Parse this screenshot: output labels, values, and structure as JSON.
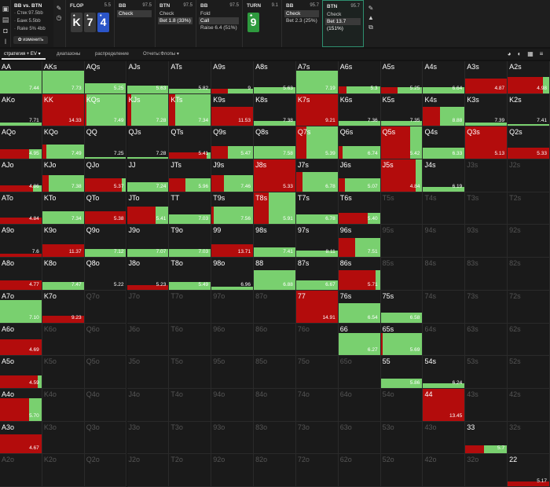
{
  "header": {
    "title": "BB vs. BTN",
    "stack": "· Стек 97.5bb",
    "pot": "· Банк 5.5bb",
    "rake": "· Rake 5% 4bb",
    "change_label": "✿ изменить"
  },
  "streets": [
    {
      "name": "FLOP",
      "stack": "5.5",
      "actions": [],
      "cards": [
        {
          "rank": "K",
          "suit": "♠",
          "color": "#3a3a3a"
        },
        {
          "rank": "7",
          "suit": "♠",
          "color": "#3a3a3a"
        },
        {
          "rank": "4",
          "suit": "♦",
          "color": "#2b55c8"
        }
      ]
    },
    {
      "name": "BB",
      "stack": "97.5",
      "actions": [
        {
          "label": "Check",
          "selected": true
        }
      ]
    },
    {
      "name": "BTN",
      "stack": "97.5",
      "actions": [
        {
          "label": "Check",
          "selected": false
        },
        {
          "label": "Bet 1.8 (33%)",
          "selected": true
        }
      ]
    },
    {
      "name": "BB",
      "stack": "97.5",
      "actions": [
        {
          "label": "Fold",
          "selected": false
        },
        {
          "label": "Call",
          "selected": true
        },
        {
          "label": "Raise 6.4 (51%)",
          "selected": false
        }
      ]
    },
    {
      "name": "TURN",
      "stack": "9.1",
      "actions": [],
      "cards": [
        {
          "rank": "9",
          "suit": "♣",
          "color": "#2e9a3e"
        }
      ]
    },
    {
      "name": "BB",
      "stack": "95.7",
      "actions": [
        {
          "label": "Check",
          "selected": true
        },
        {
          "label": "Bet 2.3 (25%)",
          "selected": false
        }
      ]
    },
    {
      "name": "BTN",
      "stack": "95.7",
      "actions": [
        {
          "label": "Check",
          "selected": false
        },
        {
          "label": "Bet 13.7 (151%)",
          "selected": true
        }
      ]
    }
  ],
  "tabs": [
    "стратегия + EV ▾",
    "диапазоны",
    "распределение",
    "Отчеты:Флопы ▾"
  ],
  "colors": {
    "green": "#79d06f",
    "red": "#b30c0c",
    "empty": "#1b1b1b"
  },
  "grid": [
    [
      {
        "h": "AA",
        "f": 0.7,
        "g": 1,
        "ev": "7.44"
      },
      {
        "h": "AKs",
        "f": 0.7,
        "g": 1,
        "ev": "7.73"
      },
      {
        "h": "AQs",
        "f": 0.3,
        "g": 1,
        "ev": "5.25"
      },
      {
        "h": "AJs",
        "f": 0.25,
        "g": 1,
        "ev": "5.63"
      },
      {
        "h": "ATs",
        "f": 0.15,
        "g": 1,
        "ev": "5.82"
      },
      {
        "h": "A9s",
        "f": 0.15,
        "g": 0.6,
        "ev": "9"
      },
      {
        "h": "A8s",
        "f": 0.2,
        "g": 1,
        "ev": "5.63"
      },
      {
        "h": "A7s",
        "f": 0.7,
        "g": 1,
        "ev": "7.19"
      },
      {
        "h": "A6s",
        "f": 0.22,
        "g": 0.8,
        "ev": "5.3"
      },
      {
        "h": "A5s",
        "f": 0.2,
        "g": 0.6,
        "ev": "5.25"
      },
      {
        "h": "A4s",
        "f": 0.2,
        "g": 1,
        "ev": "6.64"
      },
      {
        "h": "A3s",
        "f": 0.45,
        "g": 0,
        "ev": "4.87"
      },
      {
        "h": "A2s",
        "f": 0.5,
        "g": 0.15,
        "ev": "4.98"
      }
    ],
    [
      {
        "h": "AKo",
        "f": 0.1,
        "g": 1,
        "ev": "7.71"
      },
      {
        "h": "KK",
        "f": 1.0,
        "g": 0,
        "ev": "14.33"
      },
      {
        "h": "KQs",
        "f": 1.0,
        "g": 0.95,
        "ev": "7.49"
      },
      {
        "h": "KJs",
        "f": 1.0,
        "g": 0.9,
        "ev": "7.28"
      },
      {
        "h": "KTs",
        "f": 1.0,
        "g": 0.85,
        "ev": "7.34"
      },
      {
        "h": "K9s",
        "f": 0.6,
        "g": 0,
        "ev": "11.53"
      },
      {
        "h": "K8s",
        "f": 0.15,
        "g": 1,
        "ev": "7.38"
      },
      {
        "h": "K7s",
        "f": 1.0,
        "g": 0,
        "ev": "9.21"
      },
      {
        "h": "K6s",
        "f": 0.15,
        "g": 1,
        "ev": "7.36"
      },
      {
        "h": "K5s",
        "f": 0.15,
        "g": 1,
        "ev": "7.35"
      },
      {
        "h": "K4s",
        "f": 0.6,
        "g": 0.6,
        "ev": "8.88"
      },
      {
        "h": "K3s",
        "f": 0.1,
        "g": 1,
        "ev": "7.39"
      },
      {
        "h": "K2s",
        "f": 0.06,
        "g": 1,
        "ev": "7.41"
      }
    ],
    [
      {
        "h": "AQo",
        "f": 0.3,
        "g": 0.3,
        "ev": "4.95"
      },
      {
        "h": "KQo",
        "f": 0.45,
        "g": 0.9,
        "ev": "7.49"
      },
      {
        "h": "QQ",
        "f": 0.05,
        "g": 1,
        "ev": "7.25"
      },
      {
        "h": "QJs",
        "f": 0.05,
        "g": 1,
        "ev": "7.28"
      },
      {
        "h": "QTs",
        "f": 0.2,
        "g": 0.1,
        "ev": "5.41"
      },
      {
        "h": "Q9s",
        "f": 0.4,
        "g": 0.6,
        "ev": "5.47"
      },
      {
        "h": "Q8s",
        "f": 0.4,
        "g": 1,
        "ev": "7.58"
      },
      {
        "h": "Q7s",
        "f": 1.0,
        "g": 0.75,
        "ev": "5.39"
      },
      {
        "h": "Q6s",
        "f": 0.4,
        "g": 0.9,
        "ev": "6.74"
      },
      {
        "h": "Q5s",
        "f": 1.0,
        "g": 0.3,
        "ev": "5.42"
      },
      {
        "h": "Q4s",
        "f": 0.35,
        "g": 1,
        "ev": "6.33"
      },
      {
        "h": "Q3s",
        "f": 1.0,
        "g": 0,
        "ev": "5.13"
      },
      {
        "h": "Q2s",
        "f": 0.35,
        "g": 0,
        "ev": "5.33"
      }
    ],
    [
      {
        "h": "AJo",
        "f": 0.2,
        "g": 0.2,
        "ev": "4.86"
      },
      {
        "h": "KJo",
        "f": 0.5,
        "g": 0.85,
        "ev": "7.38"
      },
      {
        "h": "QJo",
        "f": 0.4,
        "g": 0.1,
        "ev": "5.37"
      },
      {
        "h": "JJ",
        "f": 0.3,
        "g": 1,
        "ev": "7.24"
      },
      {
        "h": "JTs",
        "f": 0.4,
        "g": 0.6,
        "ev": "5.96"
      },
      {
        "h": "J9s",
        "f": 0.5,
        "g": 0.7,
        "ev": "7.46"
      },
      {
        "h": "J8s",
        "f": 1.0,
        "g": 0,
        "ev": "5.33"
      },
      {
        "h": "J7s",
        "f": 0.6,
        "g": 0.85,
        "ev": "6.78"
      },
      {
        "h": "J6s",
        "f": 0.4,
        "g": 0.85,
        "ev": "5.07"
      },
      {
        "h": "J5s",
        "f": 1.0,
        "g": 0.15,
        "ev": "4.84"
      },
      {
        "h": "J4s",
        "f": 0.15,
        "g": 1,
        "ev": "6.19"
      },
      {
        "h": "J3s",
        "f": 0,
        "g": 0,
        "ev": "",
        "off": true
      },
      {
        "h": "J2s",
        "f": 0,
        "g": 0,
        "ev": "",
        "off": true
      }
    ],
    [
      {
        "h": "ATo",
        "f": 0.2,
        "g": 0,
        "ev": "4.84"
      },
      {
        "h": "KTo",
        "f": 0.4,
        "g": 1,
        "ev": "7.34"
      },
      {
        "h": "QTo",
        "f": 0.4,
        "g": 0,
        "ev": "5.38"
      },
      {
        "h": "JTo",
        "f": 0.55,
        "g": 0.3,
        "ev": "5.41"
      },
      {
        "h": "TT",
        "f": 0.3,
        "g": 1,
        "ev": "7.03"
      },
      {
        "h": "T9s",
        "f": 0.55,
        "g": 0.95,
        "ev": "7.56"
      },
      {
        "h": "T8s",
        "f": 1.0,
        "g": 0.65,
        "ev": "5.91"
      },
      {
        "h": "T7s",
        "f": 0.3,
        "g": 1,
        "ev": "6.78"
      },
      {
        "h": "T6s",
        "f": 0.35,
        "g": 0.3,
        "ev": "5.40"
      },
      {
        "h": "T5s",
        "f": 0,
        "g": 0,
        "ev": "",
        "off": true
      },
      {
        "h": "T4s",
        "f": 0,
        "g": 0,
        "ev": "",
        "off": true
      },
      {
        "h": "T3s",
        "f": 0,
        "g": 0,
        "ev": "",
        "off": true
      },
      {
        "h": "T2s",
        "f": 0,
        "g": 0,
        "ev": "",
        "off": true
      }
    ],
    [
      {
        "h": "A9o",
        "f": 0.1,
        "g": 0,
        "ev": "7.6"
      },
      {
        "h": "K9o",
        "f": 0.4,
        "g": 0,
        "ev": "11.37"
      },
      {
        "h": "Q9o",
        "f": 0.25,
        "g": 1,
        "ev": "7.12"
      },
      {
        "h": "J9o",
        "f": 0.25,
        "g": 1,
        "ev": "7.07"
      },
      {
        "h": "T9o",
        "f": 0.25,
        "g": 1,
        "ev": "7.03"
      },
      {
        "h": "99",
        "f": 0.4,
        "g": 0,
        "ev": "13.71"
      },
      {
        "h": "98s",
        "f": 0.3,
        "g": 1,
        "ev": "7.41"
      },
      {
        "h": "97s",
        "f": 0.2,
        "g": 1,
        "ev": "8.11"
      },
      {
        "h": "96s",
        "f": 0.6,
        "g": 0.6,
        "ev": "7.51"
      },
      {
        "h": "95s",
        "f": 0,
        "g": 0,
        "ev": "",
        "off": true
      },
      {
        "h": "94s",
        "f": 0,
        "g": 0,
        "ev": "",
        "off": true
      },
      {
        "h": "93s",
        "f": 0,
        "g": 0,
        "ev": "",
        "off": true
      },
      {
        "h": "92s",
        "f": 0,
        "g": 0,
        "ev": "",
        "off": true
      }
    ],
    [
      {
        "h": "A8o",
        "f": 0.3,
        "g": 0,
        "ev": "4.77"
      },
      {
        "h": "K8o",
        "f": 0.25,
        "g": 1,
        "ev": "7.47"
      },
      {
        "h": "Q8o",
        "f": 0,
        "g": 0,
        "ev": "5.22"
      },
      {
        "h": "J8o",
        "f": 0.15,
        "g": 0,
        "ev": "5.23"
      },
      {
        "h": "T8o",
        "f": 0.25,
        "g": 1,
        "ev": "5.49"
      },
      {
        "h": "98o",
        "f": 0.1,
        "g": 1,
        "ev": "6.96"
      },
      {
        "h": "88",
        "f": 0.6,
        "g": 1,
        "ev": "6.88"
      },
      {
        "h": "87s",
        "f": 0.3,
        "g": 1,
        "ev": "6.67"
      },
      {
        "h": "86s",
        "f": 0.6,
        "g": 0.1,
        "ev": "5.71"
      },
      {
        "h": "85s",
        "f": 0,
        "g": 0,
        "ev": "",
        "off": true
      },
      {
        "h": "84s",
        "f": 0,
        "g": 0,
        "ev": "",
        "off": true
      },
      {
        "h": "83s",
        "f": 0,
        "g": 0,
        "ev": "",
        "off": true
      },
      {
        "h": "82s",
        "f": 0,
        "g": 0,
        "ev": "",
        "off": true
      }
    ],
    [
      {
        "h": "A7o",
        "f": 0.7,
        "g": 1,
        "ev": "7.10"
      },
      {
        "h": "K7o",
        "f": 0.2,
        "g": 0,
        "ev": "9.23"
      },
      {
        "h": "Q7o",
        "f": 0,
        "g": 0,
        "ev": "",
        "off": true
      },
      {
        "h": "J7o",
        "f": 0,
        "g": 0,
        "ev": "",
        "off": true
      },
      {
        "h": "T7o",
        "f": 0,
        "g": 0,
        "ev": "",
        "off": true
      },
      {
        "h": "97o",
        "f": 0,
        "g": 0,
        "ev": "",
        "off": true
      },
      {
        "h": "87o",
        "f": 0,
        "g": 0,
        "ev": "",
        "off": true
      },
      {
        "h": "77",
        "f": 1.0,
        "g": 0,
        "ev": "14.91"
      },
      {
        "h": "76s",
        "f": 0.6,
        "g": 1,
        "ev": "6.54"
      },
      {
        "h": "75s",
        "f": 0.3,
        "g": 1,
        "ev": "6.58"
      },
      {
        "h": "74s",
        "f": 0,
        "g": 0,
        "ev": "",
        "off": true
      },
      {
        "h": "73s",
        "f": 0,
        "g": 0,
        "ev": "",
        "off": true
      },
      {
        "h": "72s",
        "f": 0,
        "g": 0,
        "ev": "",
        "off": true
      }
    ],
    [
      {
        "h": "A6o",
        "f": 0.5,
        "g": 0,
        "ev": "4.69"
      },
      {
        "h": "K6o",
        "f": 0,
        "g": 0,
        "ev": "",
        "off": true
      },
      {
        "h": "Q6o",
        "f": 0,
        "g": 0,
        "ev": "",
        "off": true
      },
      {
        "h": "J6o",
        "f": 0,
        "g": 0,
        "ev": "",
        "off": true
      },
      {
        "h": "T6o",
        "f": 0,
        "g": 0,
        "ev": "",
        "off": true
      },
      {
        "h": "96o",
        "f": 0,
        "g": 0,
        "ev": "",
        "off": true
      },
      {
        "h": "86o",
        "f": 0,
        "g": 0,
        "ev": "",
        "off": true
      },
      {
        "h": "76o",
        "f": 0,
        "g": 0,
        "ev": "",
        "off": true
      },
      {
        "h": "66",
        "f": 0.7,
        "g": 1,
        "ev": "6.27"
      },
      {
        "h": "65s",
        "f": 0.7,
        "g": 0.95,
        "ev": "5.69"
      },
      {
        "h": "64s",
        "f": 0,
        "g": 0,
        "ev": "",
        "off": true
      },
      {
        "h": "63s",
        "f": 0,
        "g": 0,
        "ev": "",
        "off": true
      },
      {
        "h": "62s",
        "f": 0,
        "g": 0,
        "ev": "",
        "off": true
      }
    ],
    [
      {
        "h": "A5o",
        "f": 0.4,
        "g": 0.1,
        "ev": "4.59"
      },
      {
        "h": "K5o",
        "f": 0,
        "g": 0,
        "ev": "",
        "off": true
      },
      {
        "h": "Q5o",
        "f": 0,
        "g": 0,
        "ev": "",
        "off": true
      },
      {
        "h": "J5o",
        "f": 0,
        "g": 0,
        "ev": "",
        "off": true
      },
      {
        "h": "T5o",
        "f": 0,
        "g": 0,
        "ev": "",
        "off": true
      },
      {
        "h": "95o",
        "f": 0,
        "g": 0,
        "ev": "",
        "off": true
      },
      {
        "h": "85o",
        "f": 0,
        "g": 0,
        "ev": "",
        "off": true
      },
      {
        "h": "75o",
        "f": 0,
        "g": 0,
        "ev": "",
        "off": true
      },
      {
        "h": "65o",
        "f": 0,
        "g": 0,
        "ev": "",
        "off": true
      },
      {
        "h": "55",
        "f": 0.3,
        "g": 1,
        "ev": "5.86"
      },
      {
        "h": "54s",
        "f": 0.15,
        "g": 1,
        "ev": "6.24"
      },
      {
        "h": "53s",
        "f": 0,
        "g": 0,
        "ev": "",
        "off": true
      },
      {
        "h": "52s",
        "f": 0,
        "g": 0,
        "ev": "",
        "off": true
      }
    ],
    [
      {
        "h": "A4o",
        "f": 0.7,
        "g": 0.3,
        "ev": "5.70"
      },
      {
        "h": "K4o",
        "f": 0,
        "g": 0,
        "ev": "",
        "off": true
      },
      {
        "h": "Q4o",
        "f": 0,
        "g": 0,
        "ev": "",
        "off": true
      },
      {
        "h": "J4o",
        "f": 0,
        "g": 0,
        "ev": "",
        "off": true
      },
      {
        "h": "T4o",
        "f": 0,
        "g": 0,
        "ev": "",
        "off": true
      },
      {
        "h": "94o",
        "f": 0,
        "g": 0,
        "ev": "",
        "off": true
      },
      {
        "h": "84o",
        "f": 0,
        "g": 0,
        "ev": "",
        "off": true
      },
      {
        "h": "74o",
        "f": 0,
        "g": 0,
        "ev": "",
        "off": true
      },
      {
        "h": "64o",
        "f": 0,
        "g": 0,
        "ev": "",
        "off": true
      },
      {
        "h": "54o",
        "f": 0,
        "g": 0,
        "ev": "",
        "off": true
      },
      {
        "h": "44",
        "f": 1.0,
        "g": 0,
        "ev": "13.45"
      },
      {
        "h": "43s",
        "f": 0,
        "g": 0,
        "ev": "",
        "off": true
      },
      {
        "h": "42s",
        "f": 0,
        "g": 0,
        "ev": "",
        "off": true
      }
    ],
    [
      {
        "h": "A3o",
        "f": 0.6,
        "g": 0,
        "ev": "4.67"
      },
      {
        "h": "K3o",
        "f": 0,
        "g": 0,
        "ev": "",
        "off": true
      },
      {
        "h": "Q3o",
        "f": 0,
        "g": 0,
        "ev": "",
        "off": true
      },
      {
        "h": "J3o",
        "f": 0,
        "g": 0,
        "ev": "",
        "off": true
      },
      {
        "h": "T3o",
        "f": 0,
        "g": 0,
        "ev": "",
        "off": true
      },
      {
        "h": "93o",
        "f": 0,
        "g": 0,
        "ev": "",
        "off": true
      },
      {
        "h": "83o",
        "f": 0,
        "g": 0,
        "ev": "",
        "off": true
      },
      {
        "h": "73o",
        "f": 0,
        "g": 0,
        "ev": "",
        "off": true
      },
      {
        "h": "63o",
        "f": 0,
        "g": 0,
        "ev": "",
        "off": true
      },
      {
        "h": "53o",
        "f": 0,
        "g": 0,
        "ev": "",
        "off": true
      },
      {
        "h": "43o",
        "f": 0,
        "g": 0,
        "ev": "",
        "off": true
      },
      {
        "h": "33",
        "f": 0.25,
        "g": 0.55,
        "ev": "5.7"
      },
      {
        "h": "32s",
        "f": 0,
        "g": 0,
        "ev": "",
        "off": true
      }
    ],
    [
      {
        "h": "A2o",
        "f": 0,
        "g": 0,
        "ev": "",
        "off": true
      },
      {
        "h": "K2o",
        "f": 0,
        "g": 0,
        "ev": "",
        "off": true
      },
      {
        "h": "Q2o",
        "f": 0,
        "g": 0,
        "ev": "",
        "off": true
      },
      {
        "h": "J2o",
        "f": 0,
        "g": 0,
        "ev": "",
        "off": true
      },
      {
        "h": "T2o",
        "f": 0,
        "g": 0,
        "ev": "",
        "off": true
      },
      {
        "h": "92o",
        "f": 0,
        "g": 0,
        "ev": "",
        "off": true
      },
      {
        "h": "82o",
        "f": 0,
        "g": 0,
        "ev": "",
        "off": true
      },
      {
        "h": "72o",
        "f": 0,
        "g": 0,
        "ev": "",
        "off": true
      },
      {
        "h": "62o",
        "f": 0,
        "g": 0,
        "ev": "",
        "off": true
      },
      {
        "h": "52o",
        "f": 0,
        "g": 0,
        "ev": "",
        "off": true
      },
      {
        "h": "42o",
        "f": 0,
        "g": 0,
        "ev": "",
        "off": true
      },
      {
        "h": "32o",
        "f": 0,
        "g": 0,
        "ev": "",
        "off": true
      },
      {
        "h": "22",
        "f": 0.15,
        "g": 0,
        "ev": "5.17"
      }
    ]
  ]
}
